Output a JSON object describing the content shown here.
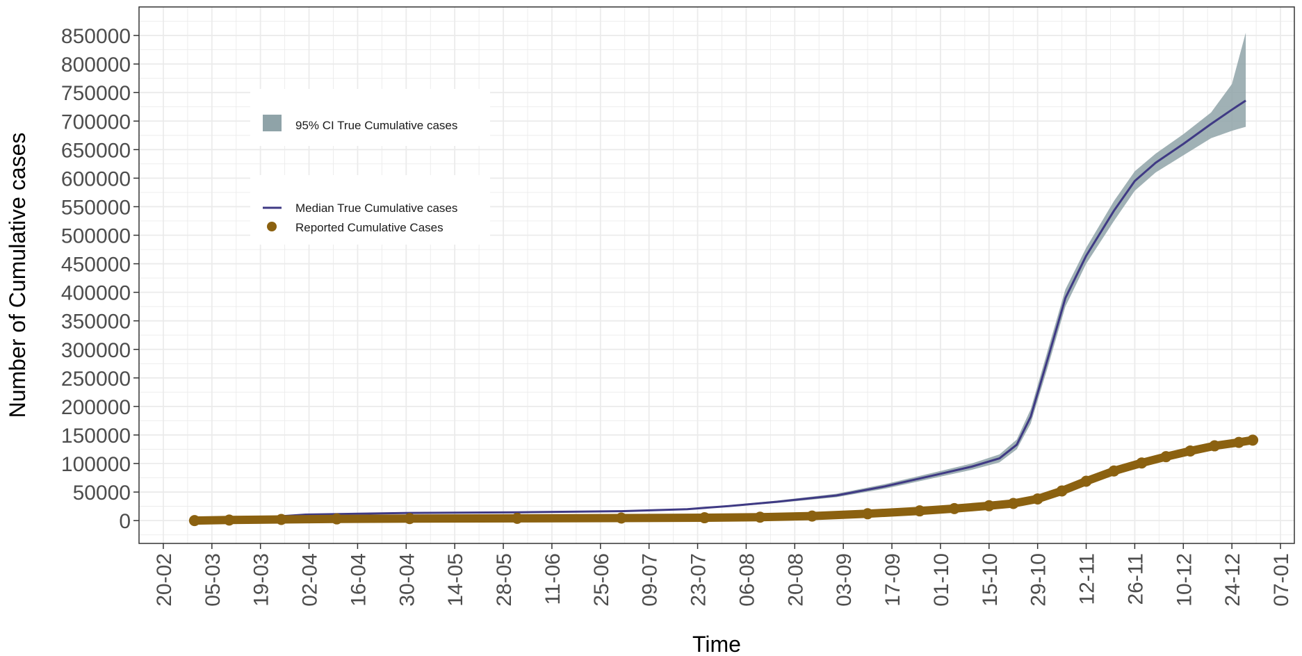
{
  "chart_data": {
    "type": "line",
    "title": "",
    "xlabel": "Time",
    "ylabel": "Number of Cumulative cases",
    "x_ticks": [
      "20-02",
      "05-03",
      "19-03",
      "02-04",
      "16-04",
      "30-04",
      "14-05",
      "28-05",
      "11-06",
      "25-06",
      "09-07",
      "23-07",
      "06-08",
      "20-08",
      "03-09",
      "17-09",
      "01-10",
      "15-10",
      "29-10",
      "12-11",
      "26-11",
      "10-12",
      "24-12",
      "07-01"
    ],
    "y_ticks": [
      "0",
      "50000",
      "100000",
      "150000",
      "200000",
      "250000",
      "300000",
      "350000",
      "400000",
      "450000",
      "500000",
      "550000",
      "600000",
      "650000",
      "700000",
      "750000",
      "800000",
      "850000"
    ],
    "xlim": [
      "2020-02-13",
      "2021-01-11"
    ],
    "ylim": [
      -40000,
      900000
    ],
    "grid": true,
    "legend_position": "top-left",
    "colors": {
      "ci_band": "#8fa3a8",
      "median": "#3f3a84",
      "reported": "#8b6110",
      "grid": "#ebebeb",
      "panel_border": "#333333"
    },
    "series": [
      {
        "name": "95% CI True Cumulative cases",
        "kind": "band",
        "x": [
          "2020-02-29",
          "2020-03-15",
          "2020-04-01",
          "2020-05-01",
          "2020-06-01",
          "2020-07-01",
          "2020-07-20",
          "2020-08-01",
          "2020-08-15",
          "2020-09-01",
          "2020-09-15",
          "2020-10-01",
          "2020-10-10",
          "2020-10-18",
          "2020-10-23",
          "2020-10-27",
          "2020-11-01",
          "2020-11-06",
          "2020-11-12",
          "2020-11-20",
          "2020-11-26",
          "2020-12-02",
          "2020-12-10",
          "2020-12-18",
          "2020-12-24",
          "2020-12-28"
        ],
        "lower": [
          0,
          3000,
          10000,
          13000,
          14000,
          16000,
          19000,
          24000,
          31000,
          41000,
          56000,
          77000,
          89000,
          102000,
          125000,
          170000,
          270000,
          375000,
          450000,
          525000,
          578000,
          610000,
          640000,
          670000,
          683000,
          690000
        ],
        "upper": [
          0,
          4000,
          11000,
          14000,
          15000,
          17000,
          21000,
          27000,
          35000,
          47000,
          64000,
          87000,
          100000,
          116000,
          142000,
          195000,
          300000,
          405000,
          478000,
          560000,
          612000,
          643000,
          677000,
          715000,
          765000,
          855000
        ]
      },
      {
        "name": "Median True Cumulative cases",
        "kind": "line",
        "x": [
          "2020-02-29",
          "2020-03-15",
          "2020-04-01",
          "2020-05-01",
          "2020-06-01",
          "2020-07-01",
          "2020-07-20",
          "2020-08-01",
          "2020-08-15",
          "2020-09-01",
          "2020-09-15",
          "2020-10-01",
          "2020-10-10",
          "2020-10-18",
          "2020-10-23",
          "2020-10-27",
          "2020-11-01",
          "2020-11-06",
          "2020-11-12",
          "2020-11-20",
          "2020-11-26",
          "2020-12-02",
          "2020-12-10",
          "2020-12-18",
          "2020-12-24",
          "2020-12-28"
        ],
        "y": [
          0,
          3500,
          10500,
          13500,
          14500,
          16500,
          20000,
          25500,
          33000,
          44000,
          60000,
          82000,
          94500,
          109000,
          133000,
          182000,
          285000,
          390000,
          464000,
          543000,
          595000,
          627000,
          660000,
          695000,
          720000,
          736000
        ]
      },
      {
        "name": "Reported Cumulative Cases",
        "kind": "points",
        "x": [
          "2020-02-29",
          "2020-03-10",
          "2020-03-25",
          "2020-04-10",
          "2020-05-01",
          "2020-06-01",
          "2020-07-01",
          "2020-07-25",
          "2020-08-10",
          "2020-08-25",
          "2020-09-10",
          "2020-09-25",
          "2020-10-05",
          "2020-10-15",
          "2020-10-22",
          "2020-10-29",
          "2020-11-05",
          "2020-11-12",
          "2020-11-20",
          "2020-11-28",
          "2020-12-05",
          "2020-12-12",
          "2020-12-19",
          "2020-12-26",
          "2020-12-30"
        ],
        "y": [
          0,
          1000,
          2000,
          3000,
          3500,
          4000,
          4500,
          5000,
          6000,
          8000,
          12000,
          17000,
          21000,
          26000,
          30000,
          38000,
          52000,
          69000,
          87000,
          101000,
          112000,
          122000,
          131000,
          137000,
          141000
        ]
      }
    ]
  }
}
